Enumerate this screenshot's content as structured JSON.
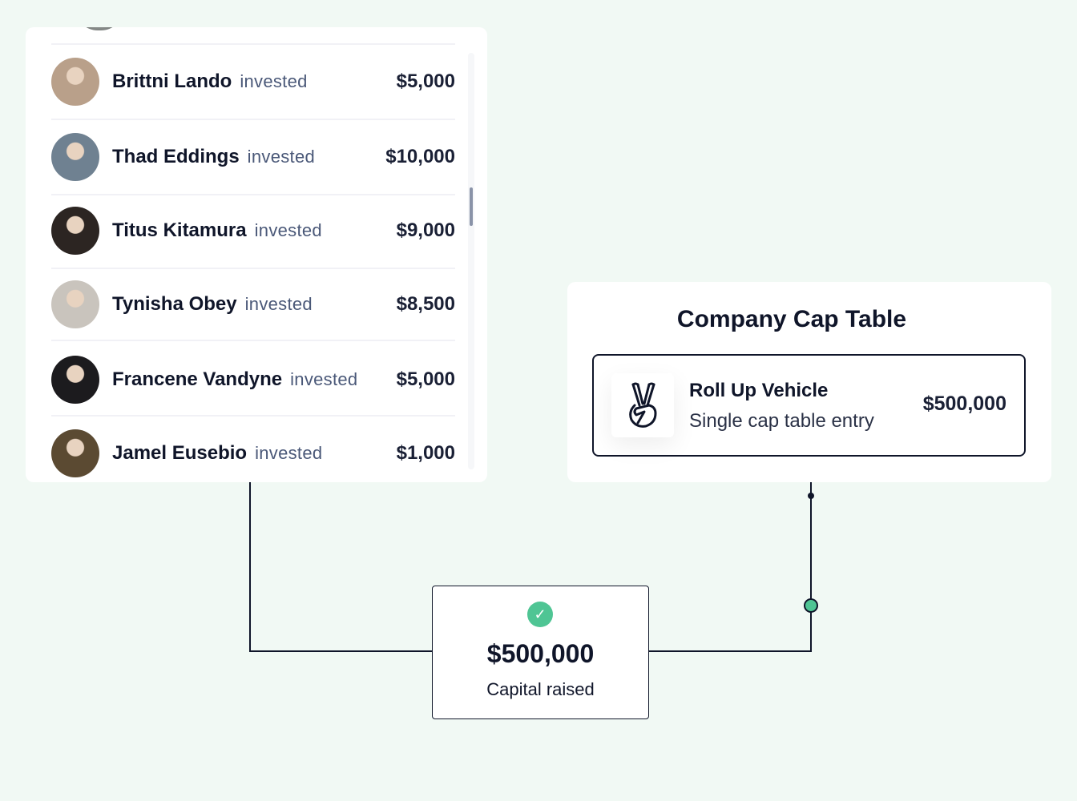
{
  "investors": [
    {
      "name": "Brittni Lando",
      "verb": "invested",
      "amount": "$5,000",
      "avatar_color": "#b9a08a"
    },
    {
      "name": "Thad Eddings",
      "verb": "invested",
      "amount": "$10,000",
      "avatar_color": "#6f8191"
    },
    {
      "name": "Titus Kitamura",
      "verb": "invested",
      "amount": "$9,000",
      "avatar_color": "#2c2522"
    },
    {
      "name": "Tynisha Obey",
      "verb": "invested",
      "amount": "$8,500",
      "avatar_color": "#c9c4bd"
    },
    {
      "name": "Francene Vandyne",
      "verb": "invested",
      "amount": "$5,000",
      "avatar_color": "#1c1b1e"
    },
    {
      "name": "Jamel Eusebio",
      "verb": "invested",
      "amount": "$1,000",
      "avatar_color": "#5b4a32"
    }
  ],
  "cap_table": {
    "title": "Company Cap Table",
    "entry": {
      "icon": "peace-hand-icon",
      "title": "Roll Up Vehicle",
      "subtitle": "Single cap table entry",
      "amount": "$500,000"
    }
  },
  "summary": {
    "icon": "check-icon",
    "amount": "$500,000",
    "label": "Capital raised"
  },
  "colors": {
    "background": "#f1f9f4",
    "accent": "#4fc594",
    "text": "#0f1529",
    "muted": "#4a5878"
  }
}
